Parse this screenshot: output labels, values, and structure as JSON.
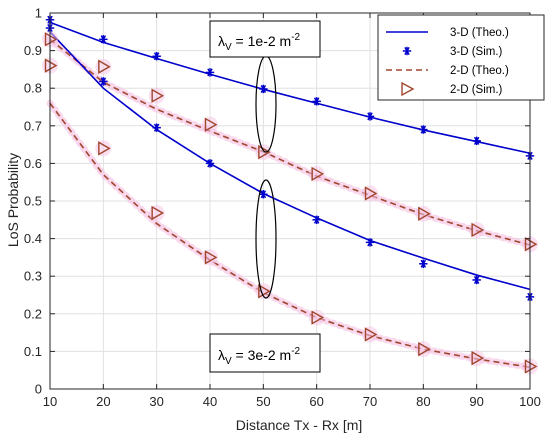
{
  "chart_data": {
    "type": "line",
    "xlabel": "Distance  Tx - Rx [m]",
    "ylabel": "LoS Probability",
    "xlim": [
      10,
      100
    ],
    "ylim": [
      0,
      1
    ],
    "x_ticks": [
      10,
      20,
      30,
      40,
      50,
      60,
      70,
      80,
      90,
      100
    ],
    "y_ticks": [
      0,
      0.1,
      0.2,
      0.3,
      0.4,
      0.5,
      0.6,
      0.7,
      0.8,
      0.9,
      1
    ],
    "grid": true,
    "legend_position": "top-right",
    "legend": [
      "3-D (Theo.)",
      "3-D (Sim.)",
      "2-D (Theo.)",
      "2-D (Sim.)"
    ],
    "colors": {
      "blue": "#0000cc",
      "brown": "#a0462d",
      "pink_glow": "#f6c6e6",
      "grid": "#e0e0e0"
    },
    "x": [
      10,
      20,
      30,
      40,
      50,
      60,
      70,
      80,
      90,
      100
    ],
    "series": [
      {
        "name": "3-D (Theo.)",
        "group": "1e-2",
        "style": "solid",
        "color": "#0000cc",
        "values": [
          0.975,
          0.922,
          0.879,
          0.837,
          0.797,
          0.76,
          0.723,
          0.689,
          0.658,
          0.627
        ]
      },
      {
        "name": "3-D (Sim.)",
        "group": "1e-2",
        "marker": "asterisk",
        "color": "#0000cc",
        "values": [
          0.982,
          0.93,
          0.885,
          0.842,
          0.798,
          0.765,
          0.725,
          0.69,
          0.66,
          0.62
        ]
      },
      {
        "name": "2-D (Theo.)",
        "group": "1e-2",
        "style": "dashed",
        "color": "#a0462d",
        "values": [
          0.93,
          0.816,
          0.744,
          0.686,
          0.631,
          0.566,
          0.515,
          0.464,
          0.421,
          0.383
        ]
      },
      {
        "name": "2-D (Sim.)",
        "group": "1e-2",
        "marker": "triangle-right",
        "color": "#a0462d",
        "values": [
          0.86,
          0.857,
          0.78,
          0.703,
          0.63,
          0.572,
          0.52,
          0.466,
          0.423,
          0.385
        ]
      },
      {
        "name": "3-D (Theo.)",
        "group": "3e-2",
        "style": "solid",
        "color": "#0000cc",
        "values": [
          0.95,
          0.8,
          0.69,
          0.6,
          0.52,
          0.455,
          0.395,
          0.348,
          0.303,
          0.265
        ]
      },
      {
        "name": "3-D (Sim.)",
        "group": "3e-2",
        "marker": "asterisk",
        "color": "#0000cc",
        "values": [
          0.96,
          0.818,
          0.695,
          0.6,
          0.518,
          0.45,
          0.39,
          0.333,
          0.29,
          0.245
        ]
      },
      {
        "name": "2-D (Theo.)",
        "group": "3e-2",
        "style": "dashed",
        "color": "#a0462d",
        "values": [
          0.76,
          0.57,
          0.44,
          0.343,
          0.256,
          0.19,
          0.142,
          0.106,
          0.08,
          0.058
        ]
      },
      {
        "name": "2-D (Sim.)",
        "group": "3e-2",
        "marker": "triangle-right",
        "color": "#a0462d",
        "values": [
          0.93,
          0.64,
          0.468,
          0.35,
          0.26,
          0.19,
          0.145,
          0.106,
          0.082,
          0.06
        ]
      }
    ],
    "annotations": [
      {
        "label_main": "λ",
        "label_sub": "V",
        "label_rest": " = 1e-2 m",
        "label_sup": "-2"
      },
      {
        "label_main": "λ",
        "label_sub": "V",
        "label_rest": " = 3e-2 m",
        "label_sup": "-2"
      }
    ]
  }
}
